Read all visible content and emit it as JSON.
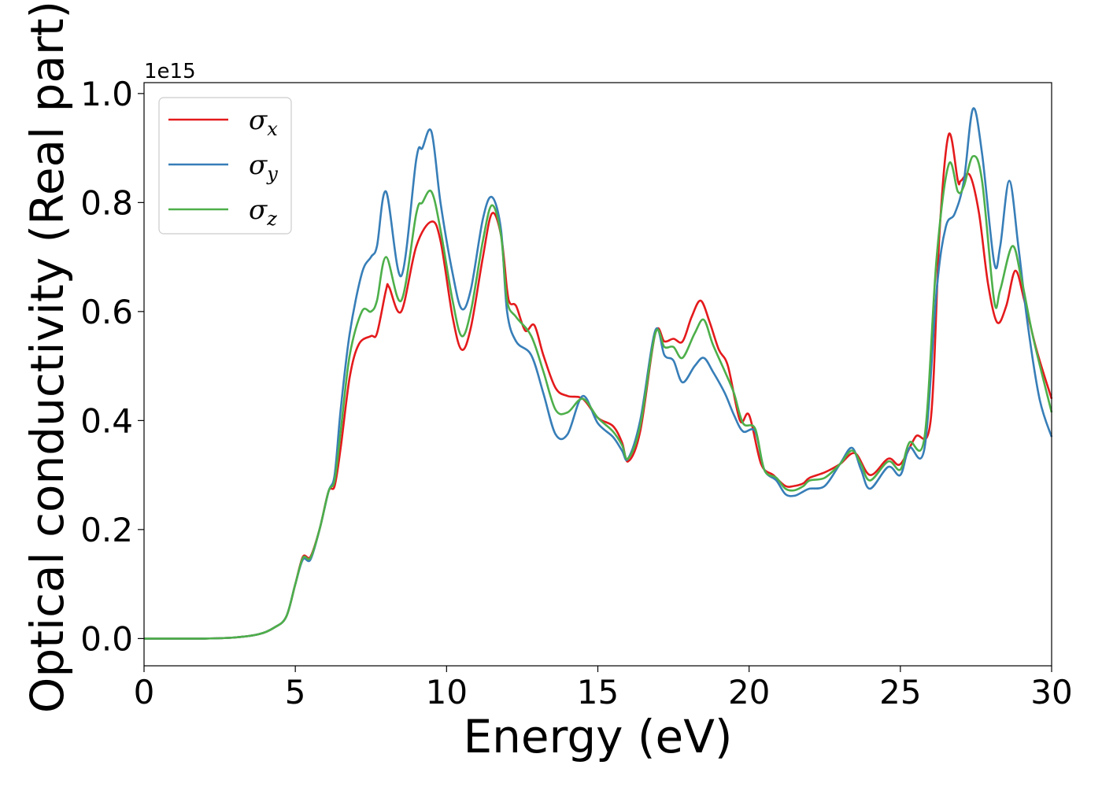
{
  "chart_data": {
    "type": "line",
    "xlabel": "Energy (eV)",
    "ylabel": "Optical conductivity (Real part)",
    "y_offset_label": "1e15",
    "y_scale": 1000000000000000.0,
    "xlim": [
      0,
      30
    ],
    "ylim": [
      -0.05,
      1.02
    ],
    "xticks": [
      0,
      5,
      10,
      15,
      20,
      25,
      30
    ],
    "yticks": [
      0.0,
      0.2,
      0.4,
      0.6,
      0.8,
      1.0
    ],
    "xtick_labels": [
      "0",
      "5",
      "10",
      "15",
      "20",
      "25",
      "30"
    ],
    "ytick_labels": [
      "0.0",
      "0.2",
      "0.4",
      "0.6",
      "0.8",
      "1.0"
    ],
    "grid": false,
    "legend_position": "top-left",
    "series": [
      {
        "name": "σx",
        "legend_base": "σ",
        "legend_sub": "x",
        "color": "#e41a1c",
        "points": [
          [
            0,
            0
          ],
          [
            2,
            0
          ],
          [
            3,
            0.002
          ],
          [
            3.8,
            0.008
          ],
          [
            4.3,
            0.02
          ],
          [
            4.7,
            0.04
          ],
          [
            5,
            0.1
          ],
          [
            5.25,
            0.15
          ],
          [
            5.5,
            0.15
          ],
          [
            5.8,
            0.2
          ],
          [
            6.1,
            0.27
          ],
          [
            6.3,
            0.28
          ],
          [
            6.5,
            0.35
          ],
          [
            6.8,
            0.48
          ],
          [
            7.1,
            0.54
          ],
          [
            7.5,
            0.555
          ],
          [
            7.7,
            0.56
          ],
          [
            8,
            0.64
          ],
          [
            8.1,
            0.645
          ],
          [
            8.5,
            0.6
          ],
          [
            9,
            0.72
          ],
          [
            9.5,
            0.765
          ],
          [
            9.8,
            0.73
          ],
          [
            10.2,
            0.59
          ],
          [
            10.5,
            0.53
          ],
          [
            10.8,
            0.57
          ],
          [
            11.2,
            0.7
          ],
          [
            11.5,
            0.78
          ],
          [
            11.8,
            0.74
          ],
          [
            12,
            0.64
          ],
          [
            12.1,
            0.615
          ],
          [
            12.3,
            0.61
          ],
          [
            12.6,
            0.565
          ],
          [
            12.9,
            0.575
          ],
          [
            13.2,
            0.52
          ],
          [
            13.6,
            0.46
          ],
          [
            14,
            0.445
          ],
          [
            14.5,
            0.44
          ],
          [
            15,
            0.405
          ],
          [
            15.5,
            0.39
          ],
          [
            15.8,
            0.36
          ],
          [
            16,
            0.325
          ],
          [
            16.4,
            0.38
          ],
          [
            16.9,
            0.56
          ],
          [
            17.2,
            0.545
          ],
          [
            17.5,
            0.55
          ],
          [
            17.8,
            0.545
          ],
          [
            18.1,
            0.59
          ],
          [
            18.4,
            0.62
          ],
          [
            18.7,
            0.58
          ],
          [
            19,
            0.53
          ],
          [
            19.3,
            0.5
          ],
          [
            19.7,
            0.4
          ],
          [
            20,
            0.41
          ],
          [
            20.4,
            0.32
          ],
          [
            20.8,
            0.3
          ],
          [
            21.2,
            0.28
          ],
          [
            21.5,
            0.28
          ],
          [
            21.8,
            0.285
          ],
          [
            22,
            0.295
          ],
          [
            22.5,
            0.305
          ],
          [
            23,
            0.32
          ],
          [
            23.5,
            0.34
          ],
          [
            24,
            0.3
          ],
          [
            24.6,
            0.33
          ],
          [
            25,
            0.32
          ],
          [
            25.5,
            0.37
          ],
          [
            26,
            0.4
          ],
          [
            26.3,
            0.75
          ],
          [
            26.6,
            0.925
          ],
          [
            26.9,
            0.84
          ],
          [
            27,
            0.84
          ],
          [
            27.3,
            0.85
          ],
          [
            27.6,
            0.78
          ],
          [
            27.9,
            0.65
          ],
          [
            28.2,
            0.58
          ],
          [
            28.5,
            0.61
          ],
          [
            28.8,
            0.675
          ],
          [
            29.1,
            0.62
          ],
          [
            29.5,
            0.53
          ],
          [
            30,
            0.44
          ]
        ]
      },
      {
        "name": "σy",
        "legend_base": "σ",
        "legend_sub": "y",
        "color": "#377eb8",
        "points": [
          [
            0,
            0
          ],
          [
            2,
            0
          ],
          [
            3,
            0.002
          ],
          [
            3.8,
            0.008
          ],
          [
            4.3,
            0.02
          ],
          [
            4.7,
            0.04
          ],
          [
            5,
            0.1
          ],
          [
            5.25,
            0.145
          ],
          [
            5.5,
            0.145
          ],
          [
            5.8,
            0.2
          ],
          [
            6.1,
            0.27
          ],
          [
            6.3,
            0.3
          ],
          [
            6.5,
            0.42
          ],
          [
            6.8,
            0.56
          ],
          [
            7.2,
            0.67
          ],
          [
            7.5,
            0.7
          ],
          [
            7.7,
            0.72
          ],
          [
            8,
            0.82
          ],
          [
            8.5,
            0.665
          ],
          [
            9,
            0.88
          ],
          [
            9.2,
            0.9
          ],
          [
            9.5,
            0.93
          ],
          [
            9.8,
            0.8
          ],
          [
            10.2,
            0.67
          ],
          [
            10.5,
            0.605
          ],
          [
            10.8,
            0.64
          ],
          [
            11.2,
            0.77
          ],
          [
            11.5,
            0.81
          ],
          [
            11.8,
            0.75
          ],
          [
            12,
            0.6
          ],
          [
            12.3,
            0.545
          ],
          [
            12.8,
            0.52
          ],
          [
            13.2,
            0.45
          ],
          [
            13.6,
            0.375
          ],
          [
            14,
            0.375
          ],
          [
            14.5,
            0.445
          ],
          [
            15,
            0.395
          ],
          [
            15.5,
            0.37
          ],
          [
            15.8,
            0.345
          ],
          [
            16,
            0.33
          ],
          [
            16.4,
            0.4
          ],
          [
            16.9,
            0.565
          ],
          [
            17.2,
            0.52
          ],
          [
            17.5,
            0.51
          ],
          [
            17.8,
            0.47
          ],
          [
            18.2,
            0.5
          ],
          [
            18.5,
            0.515
          ],
          [
            18.8,
            0.49
          ],
          [
            19.2,
            0.45
          ],
          [
            19.5,
            0.41
          ],
          [
            19.8,
            0.38
          ],
          [
            20.2,
            0.38
          ],
          [
            20.5,
            0.31
          ],
          [
            20.9,
            0.29
          ],
          [
            21.2,
            0.265
          ],
          [
            21.5,
            0.262
          ],
          [
            21.8,
            0.27
          ],
          [
            22,
            0.275
          ],
          [
            22.5,
            0.28
          ],
          [
            23,
            0.32
          ],
          [
            23.4,
            0.35
          ],
          [
            23.7,
            0.31
          ],
          [
            24,
            0.275
          ],
          [
            24.6,
            0.315
          ],
          [
            25,
            0.3
          ],
          [
            25.3,
            0.35
          ],
          [
            25.8,
            0.35
          ],
          [
            26.2,
            0.64
          ],
          [
            26.5,
            0.755
          ],
          [
            26.8,
            0.78
          ],
          [
            27.1,
            0.84
          ],
          [
            27.4,
            0.972
          ],
          [
            27.7,
            0.89
          ],
          [
            28.1,
            0.69
          ],
          [
            28.3,
            0.72
          ],
          [
            28.6,
            0.84
          ],
          [
            28.9,
            0.72
          ],
          [
            29.2,
            0.58
          ],
          [
            29.6,
            0.44
          ],
          [
            30,
            0.37
          ]
        ]
      },
      {
        "name": "σz",
        "legend_base": "σ",
        "legend_sub": "z",
        "color": "#4daf4a",
        "points": [
          [
            0,
            0
          ],
          [
            2,
            0
          ],
          [
            3,
            0.002
          ],
          [
            3.8,
            0.008
          ],
          [
            4.3,
            0.02
          ],
          [
            4.7,
            0.04
          ],
          [
            5,
            0.1
          ],
          [
            5.25,
            0.148
          ],
          [
            5.5,
            0.148
          ],
          [
            5.8,
            0.2
          ],
          [
            6.1,
            0.27
          ],
          [
            6.3,
            0.29
          ],
          [
            6.5,
            0.38
          ],
          [
            6.8,
            0.52
          ],
          [
            7.2,
            0.6
          ],
          [
            7.5,
            0.6
          ],
          [
            7.7,
            0.62
          ],
          [
            8,
            0.7
          ],
          [
            8.5,
            0.62
          ],
          [
            9,
            0.78
          ],
          [
            9.2,
            0.8
          ],
          [
            9.5,
            0.82
          ],
          [
            9.8,
            0.75
          ],
          [
            10.2,
            0.62
          ],
          [
            10.5,
            0.555
          ],
          [
            10.8,
            0.6
          ],
          [
            11.2,
            0.73
          ],
          [
            11.5,
            0.795
          ],
          [
            11.8,
            0.74
          ],
          [
            12,
            0.62
          ],
          [
            12.3,
            0.59
          ],
          [
            12.8,
            0.555
          ],
          [
            13.2,
            0.49
          ],
          [
            13.6,
            0.42
          ],
          [
            14,
            0.415
          ],
          [
            14.5,
            0.44
          ],
          [
            15,
            0.405
          ],
          [
            15.5,
            0.38
          ],
          [
            15.8,
            0.355
          ],
          [
            16,
            0.33
          ],
          [
            16.4,
            0.39
          ],
          [
            16.9,
            0.56
          ],
          [
            17.2,
            0.535
          ],
          [
            17.5,
            0.535
          ],
          [
            17.8,
            0.515
          ],
          [
            18.2,
            0.56
          ],
          [
            18.5,
            0.585
          ],
          [
            18.8,
            0.54
          ],
          [
            19.2,
            0.49
          ],
          [
            19.5,
            0.45
          ],
          [
            19.8,
            0.395
          ],
          [
            20.2,
            0.385
          ],
          [
            20.5,
            0.31
          ],
          [
            20.9,
            0.295
          ],
          [
            21.2,
            0.275
          ],
          [
            21.5,
            0.272
          ],
          [
            21.8,
            0.28
          ],
          [
            22,
            0.29
          ],
          [
            22.5,
            0.295
          ],
          [
            23,
            0.32
          ],
          [
            23.4,
            0.345
          ],
          [
            23.7,
            0.32
          ],
          [
            24,
            0.29
          ],
          [
            24.6,
            0.325
          ],
          [
            25,
            0.31
          ],
          [
            25.3,
            0.36
          ],
          [
            25.8,
            0.37
          ],
          [
            26.2,
            0.7
          ],
          [
            26.6,
            0.87
          ],
          [
            26.9,
            0.82
          ],
          [
            27.1,
            0.83
          ],
          [
            27.4,
            0.885
          ],
          [
            27.7,
            0.84
          ],
          [
            28.1,
            0.62
          ],
          [
            28.3,
            0.64
          ],
          [
            28.7,
            0.72
          ],
          [
            29,
            0.66
          ],
          [
            29.4,
            0.55
          ],
          [
            30,
            0.415
          ]
        ]
      }
    ]
  }
}
